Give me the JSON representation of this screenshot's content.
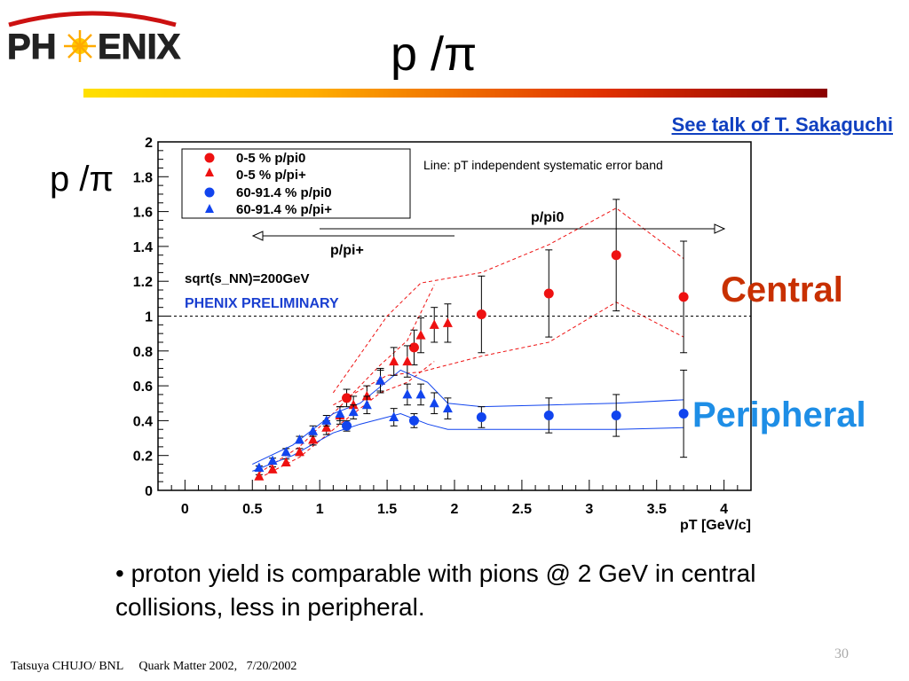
{
  "slide": {
    "logo_text": "PH ENIX",
    "title": "p /π",
    "talk_link": "See talk of T. Sakaguchi",
    "ylabel_big": "p /π",
    "annotation_central": "Central",
    "annotation_peripheral": "Peripheral",
    "bullet": "• proton yield is comparable with pions @ 2 GeV in central collisions, less in peripheral.",
    "footer_left": "Tatsuya CHUJO/ BNL     Quark Matter 2002,   7/20/2002",
    "page_number": "30",
    "colors": {
      "title_bar_start": "#ffe000",
      "title_bar_end": "#8a0000",
      "central": "#c83000",
      "peripheral": "#1e8ee6",
      "link": "#1040c0"
    }
  },
  "chart_data": {
    "type": "scatter",
    "xlabel": "pT [GeV/c]",
    "ylabel": "",
    "xlim": [
      -0.2,
      4.2
    ],
    "ylim": [
      0,
      2
    ],
    "xticks": [
      "0",
      "0.5",
      "1",
      "1.5",
      "2",
      "2.5",
      "3",
      "3.5",
      "4"
    ],
    "yticks": [
      "0",
      "0.2",
      "0.4",
      "0.6",
      "0.8",
      "1",
      "1.2",
      "1.4",
      "1.6",
      "1.8",
      "2"
    ],
    "reference_line_y": 1,
    "legend_placement": "top-left",
    "notes": {
      "systematic": "Line: pT independent systematic error band",
      "energy": "sqrt(s_NN)=200GeV",
      "preliminary": "PHENIX PRELIMINARY",
      "arrow_pi0": "p/pi0",
      "arrow_pi_plus": "p/pi+"
    },
    "series": [
      {
        "name": "0-5 % p/pi0",
        "marker": "circle",
        "color": "#ee1111",
        "x": [
          1.2,
          1.7,
          2.2,
          2.7,
          3.2,
          3.7
        ],
        "y": [
          0.53,
          0.82,
          1.01,
          1.13,
          1.35,
          1.11
        ],
        "err": [
          0.05,
          0.1,
          0.22,
          0.25,
          0.32,
          0.32
        ]
      },
      {
        "name": "0-5 % p/pi+",
        "marker": "triangle",
        "color": "#ee1111",
        "x": [
          0.55,
          0.65,
          0.75,
          0.85,
          0.95,
          1.05,
          1.15,
          1.25,
          1.35,
          1.45,
          1.55,
          1.65,
          1.75,
          1.85,
          1.95
        ],
        "y": [
          0.08,
          0.12,
          0.16,
          0.22,
          0.29,
          0.36,
          0.43,
          0.49,
          0.54,
          0.63,
          0.74,
          0.74,
          0.89,
          0.95,
          0.96
        ],
        "err": [
          0.01,
          0.015,
          0.02,
          0.02,
          0.03,
          0.04,
          0.05,
          0.05,
          0.06,
          0.07,
          0.08,
          0.09,
          0.1,
          0.1,
          0.11
        ]
      },
      {
        "name": "60-91.4 % p/pi0",
        "marker": "circle",
        "color": "#1144ee",
        "x": [
          1.2,
          1.7,
          2.2,
          2.7,
          3.2,
          3.7
        ],
        "y": [
          0.37,
          0.4,
          0.42,
          0.43,
          0.43,
          0.44
        ],
        "err": [
          0.03,
          0.04,
          0.06,
          0.1,
          0.12,
          0.25
        ]
      },
      {
        "name": "60-91.4 % p/pi+",
        "marker": "triangle",
        "color": "#1144ee",
        "x": [
          0.55,
          0.65,
          0.75,
          0.85,
          0.95,
          1.05,
          1.15,
          1.25,
          1.35,
          1.45,
          1.55,
          1.65,
          1.75,
          1.85,
          1.95
        ],
        "y": [
          0.13,
          0.17,
          0.22,
          0.29,
          0.34,
          0.4,
          0.44,
          0.45,
          0.49,
          0.63,
          0.42,
          0.55,
          0.55,
          0.5,
          0.47
        ],
        "err": [
          0.01,
          0.015,
          0.02,
          0.02,
          0.03,
          0.03,
          0.04,
          0.04,
          0.05,
          0.06,
          0.05,
          0.06,
          0.06,
          0.06,
          0.06
        ]
      }
    ],
    "bands": [
      {
        "group": "central",
        "color": "#ee1111",
        "dashed": true,
        "upper": {
          "x": [
            1.1,
            1.5,
            1.75,
            2.2,
            2.7,
            3.2,
            3.7
          ],
          "y": [
            0.56,
            1.0,
            1.19,
            1.25,
            1.41,
            1.62,
            1.33
          ]
        },
        "lower": {
          "x": [
            1.1,
            1.5,
            1.75,
            2.2,
            2.7,
            3.2,
            3.7
          ],
          "y": [
            0.49,
            0.66,
            0.68,
            0.77,
            0.85,
            1.08,
            0.88
          ]
        }
      },
      {
        "group": "central-pi+",
        "color": "#ee1111",
        "dashed": true,
        "upper": {
          "x": [
            0.55,
            0.85,
            1.15,
            1.45,
            1.65,
            1.85
          ],
          "y": [
            0.1,
            0.25,
            0.48,
            0.72,
            0.86,
            1.18
          ]
        },
        "lower": {
          "x": [
            0.55,
            0.85,
            1.15,
            1.45,
            1.65,
            1.85
          ],
          "y": [
            0.07,
            0.19,
            0.38,
            0.56,
            0.62,
            0.74
          ]
        }
      },
      {
        "group": "peripheral",
        "color": "#1144ee",
        "dashed": false,
        "upper": {
          "x": [
            0.5,
            0.8,
            1.1,
            1.3,
            1.6,
            1.8,
            1.95,
            2.2,
            2.7,
            3.2,
            3.7
          ],
          "y": [
            0.15,
            0.26,
            0.44,
            0.5,
            0.69,
            0.62,
            0.5,
            0.48,
            0.49,
            0.5,
            0.52
          ]
        },
        "lower": {
          "x": [
            0.5,
            0.8,
            1.1,
            1.3,
            1.6,
            1.8,
            1.95,
            2.2,
            2.7,
            3.2,
            3.7
          ],
          "y": [
            0.11,
            0.2,
            0.33,
            0.38,
            0.44,
            0.38,
            0.35,
            0.35,
            0.35,
            0.35,
            0.36
          ]
        }
      }
    ]
  }
}
